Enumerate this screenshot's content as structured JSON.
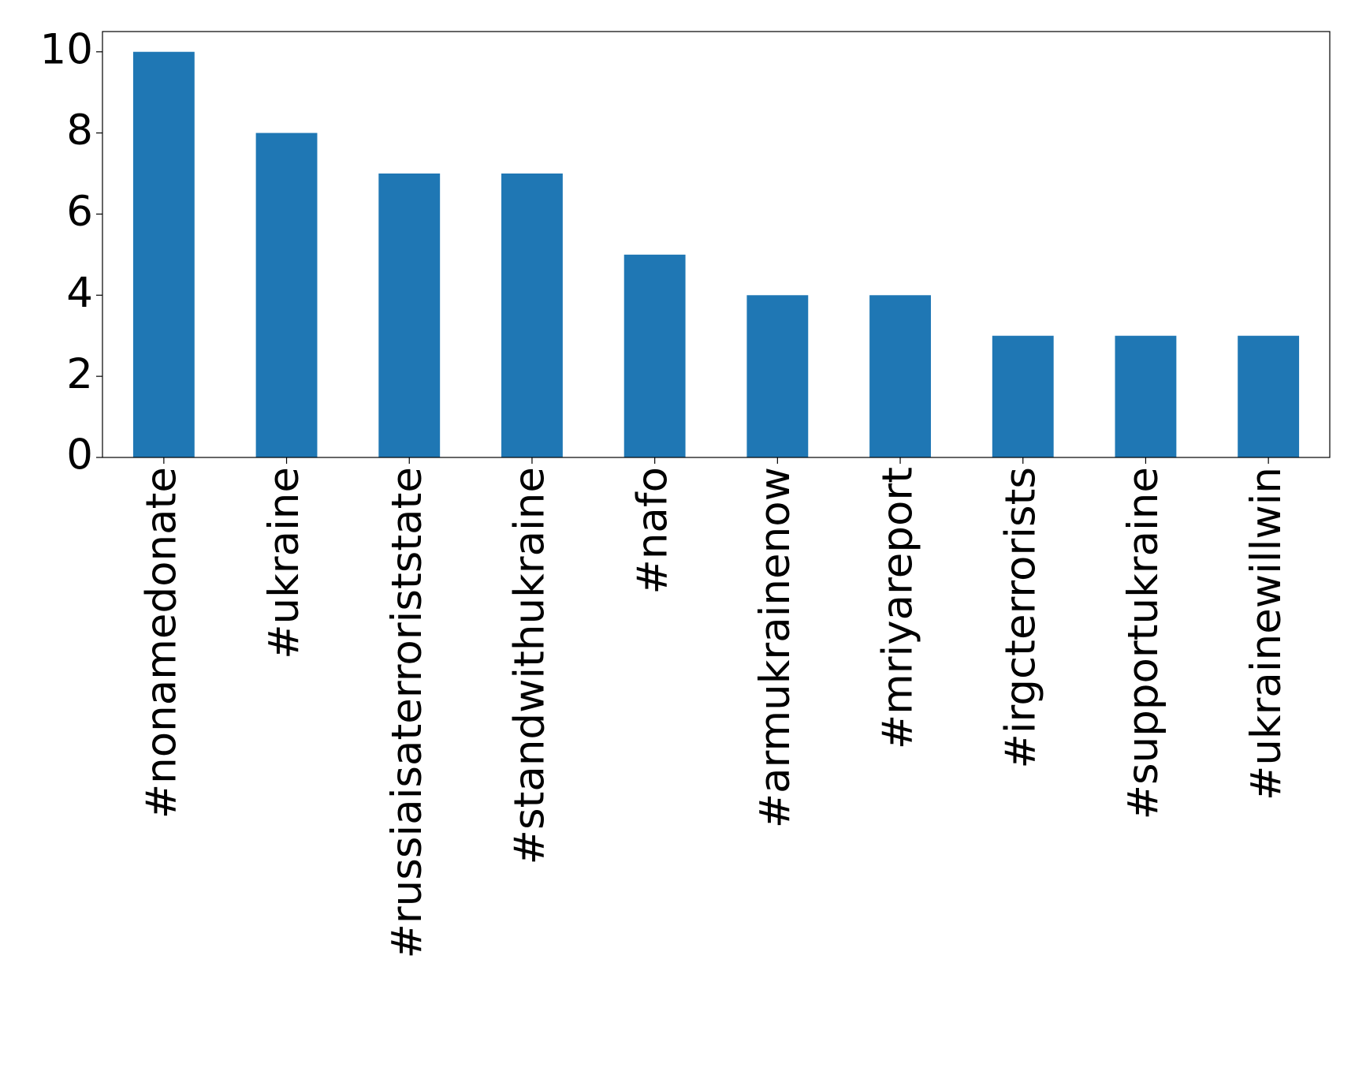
{
  "chart_data": {
    "type": "bar",
    "categories": [
      "#nonamedonate",
      "#ukraine",
      "#russiaisaterroriststate",
      "#standwithukraine",
      "#nafo",
      "#armukrainenow",
      "#mriyareport",
      "#irgcterrorists",
      "#supportukraine",
      "#ukrainewillwin"
    ],
    "values": [
      10,
      8,
      7,
      7,
      5,
      4,
      4,
      3,
      3,
      3
    ],
    "color": "#1f77b4",
    "ylim": [
      0,
      10.5
    ],
    "yticks": [
      0,
      2,
      4,
      6,
      8,
      10
    ],
    "grid": false
  }
}
